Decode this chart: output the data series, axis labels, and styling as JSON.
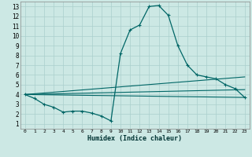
{
  "title": "",
  "xlabel": "Humidex (Indice chaleur)",
  "bg_color": "#cce8e4",
  "grid_color": "#aacfcc",
  "line_color": "#006666",
  "xlim": [
    -0.5,
    23.5
  ],
  "ylim": [
    0.5,
    13.5
  ],
  "xticks": [
    0,
    1,
    2,
    3,
    4,
    5,
    6,
    7,
    8,
    9,
    10,
    11,
    12,
    13,
    14,
    15,
    16,
    17,
    18,
    19,
    20,
    21,
    22,
    23
  ],
  "yticks": [
    1,
    2,
    3,
    4,
    5,
    6,
    7,
    8,
    9,
    10,
    11,
    12,
    13
  ],
  "series_main": {
    "x": [
      0,
      1,
      2,
      3,
      4,
      5,
      6,
      7,
      8,
      9,
      10,
      11,
      12,
      13,
      14,
      15,
      16,
      17,
      18,
      19,
      20,
      21,
      22,
      23
    ],
    "y": [
      4.0,
      3.6,
      3.0,
      2.7,
      2.2,
      2.3,
      2.3,
      2.1,
      1.8,
      1.3,
      8.2,
      10.6,
      11.1,
      13.0,
      13.1,
      12.1,
      9.0,
      7.0,
      6.0,
      5.8,
      5.6,
      5.0,
      4.6,
      3.7
    ]
  },
  "series_line1": {
    "x": [
      0,
      23
    ],
    "y": [
      4.0,
      5.8
    ]
  },
  "series_line2": {
    "x": [
      0,
      23
    ],
    "y": [
      4.0,
      4.5
    ]
  },
  "series_line3": {
    "x": [
      0,
      23
    ],
    "y": [
      4.0,
      3.7
    ]
  },
  "figsize": [
    3.2,
    2.0
  ],
  "dpi": 100
}
